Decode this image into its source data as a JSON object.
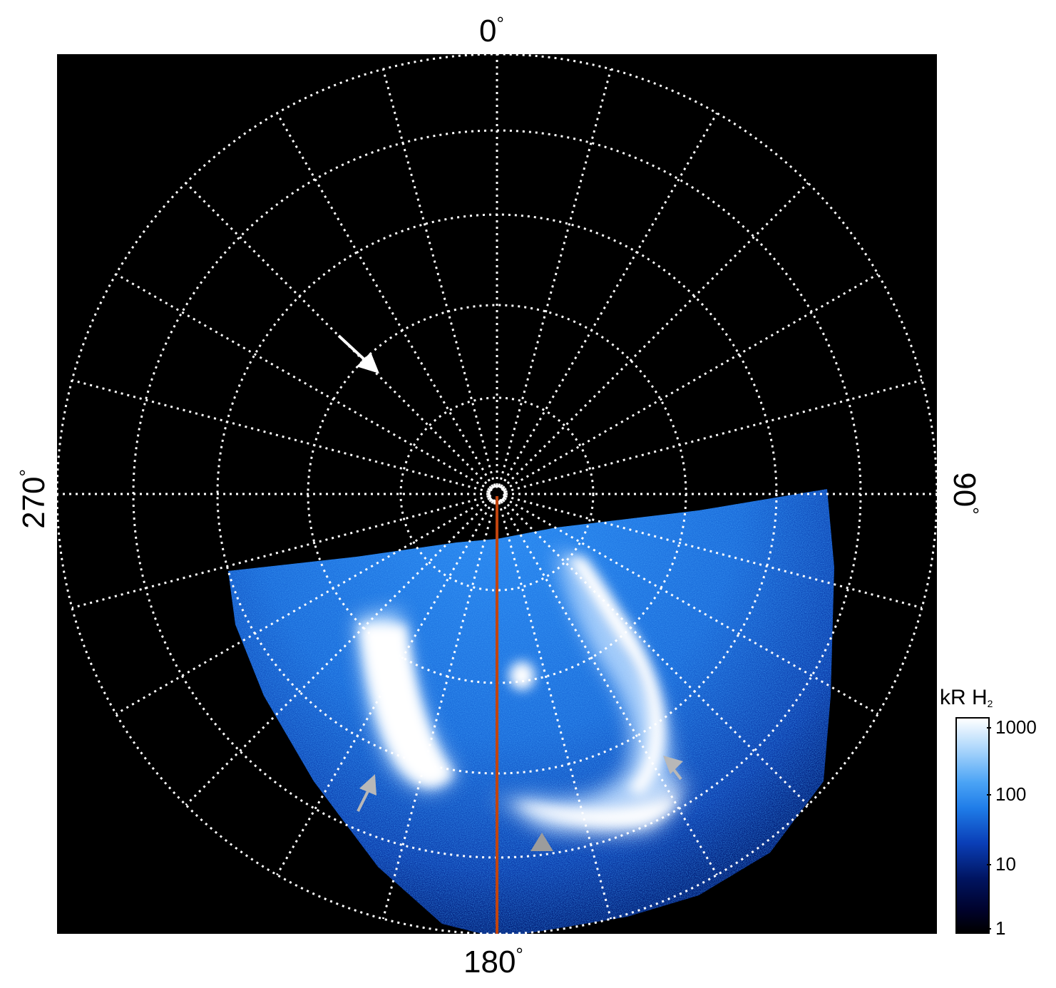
{
  "axes": {
    "top": {
      "value": "0",
      "unit": "°"
    },
    "bottom": {
      "value": "180",
      "unit": "°"
    },
    "left": {
      "value": "270",
      "unit": "°"
    },
    "right": {
      "value": "90",
      "unit": "°"
    }
  },
  "colorbar": {
    "title": "kR H",
    "title_subscript": "2",
    "ticks": [
      "1000",
      "100",
      "10",
      "1"
    ],
    "scale": "log",
    "range": [
      1,
      1000
    ]
  },
  "colors": {
    "background": "#000000",
    "grid": "#ffffff",
    "meridian": "#c1440e",
    "emission_bright": "#ffffff",
    "emission_mid": "#2a85f0",
    "emission_dark": "#001a70",
    "arrow_white": "#ffffff",
    "arrow_gray": "#b8b8b8"
  },
  "annotations": [
    {
      "name": "white-arrow",
      "color": "white"
    },
    {
      "name": "gray-arrow-dawn",
      "color": "gray"
    },
    {
      "name": "gray-arrow-bottom",
      "color": "gray"
    },
    {
      "name": "gray-arrow-dusk",
      "color": "gray"
    }
  ]
}
